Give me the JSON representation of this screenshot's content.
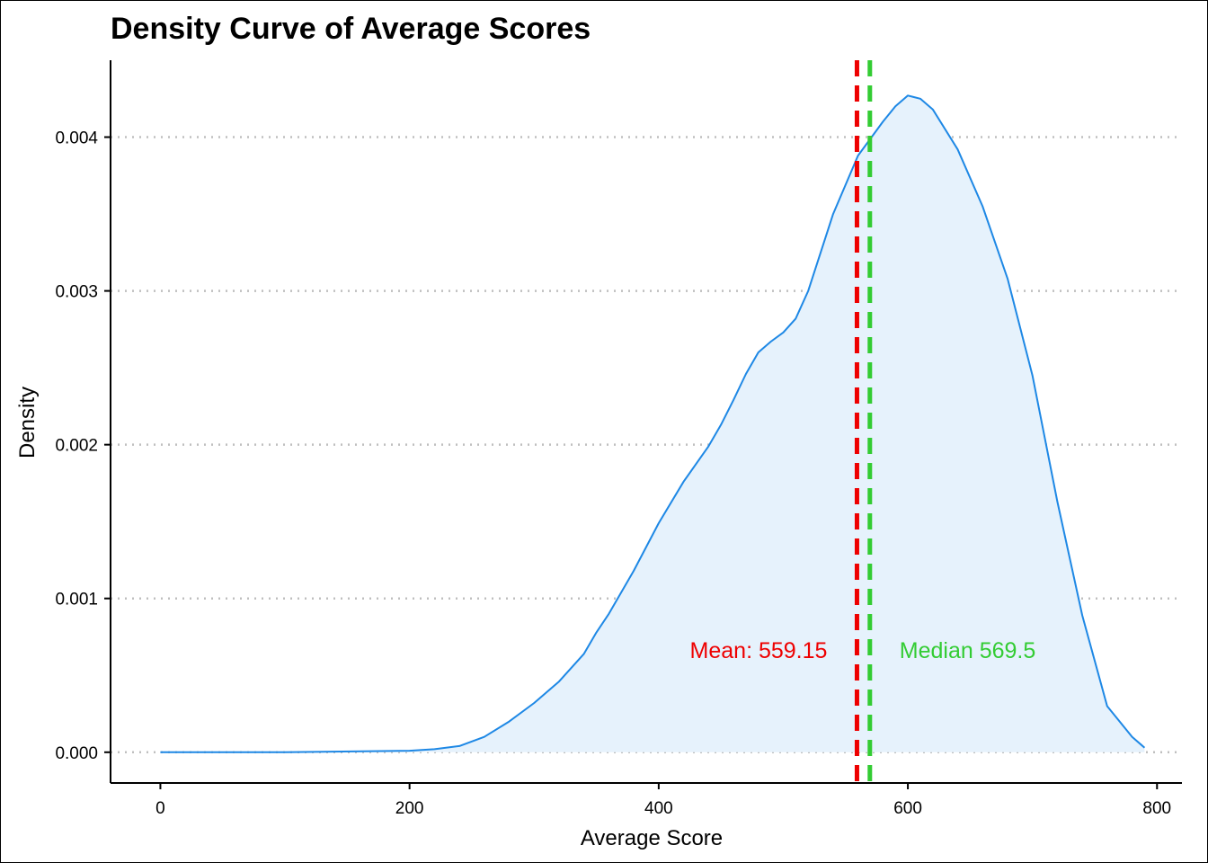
{
  "chart_data": {
    "type": "area",
    "title": "Density Curve of Average Scores",
    "xlabel": "Average Score",
    "ylabel": "Density",
    "xlim": [
      -40,
      820
    ],
    "ylim": [
      -0.0002,
      0.0045
    ],
    "x_ticks": [
      0,
      200,
      400,
      600,
      800
    ],
    "x_tick_labels": [
      "0",
      "200",
      "400",
      "600",
      "800"
    ],
    "y_ticks": [
      0,
      0.001,
      0.002,
      0.003,
      0.004
    ],
    "y_tick_labels": [
      "0.000",
      "0.001",
      "0.002",
      "0.003",
      "0.004"
    ],
    "grid": "horizontal dotted",
    "legend": "none",
    "series": [
      {
        "x": [
          0,
          100,
          200,
          220,
          240,
          260,
          280,
          300,
          320,
          340,
          350,
          360,
          380,
          400,
          420,
          440,
          450,
          460,
          470,
          480,
          490,
          500,
          510,
          520,
          540,
          560,
          580,
          590,
          600,
          610,
          620,
          640,
          660,
          680,
          700,
          720,
          740,
          760,
          780,
          790
        ],
        "y": [
          0,
          0,
          1e-05,
          2e-05,
          4e-05,
          0.0001,
          0.0002,
          0.00032,
          0.00046,
          0.00064,
          0.00078,
          0.0009,
          0.00118,
          0.00149,
          0.00176,
          0.00199,
          0.00213,
          0.00229,
          0.00246,
          0.0026,
          0.00267,
          0.00273,
          0.00282,
          0.003,
          0.0035,
          0.00388,
          0.0041,
          0.0042,
          0.00427,
          0.00425,
          0.00418,
          0.00392,
          0.00355,
          0.00308,
          0.00245,
          0.00163,
          0.00089,
          0.0003,
          0.0001,
          3e-05
        ]
      }
    ],
    "vlines": [
      {
        "x": 559.15,
        "label": "Mean: 559.15",
        "color": "#ee0000"
      },
      {
        "x": 569.5,
        "label": "Median 569.5",
        "color": "#33cc33"
      }
    ],
    "colors": {
      "line": "#1e88e5",
      "fill": "#e6f2fc",
      "mean": "#ee0000",
      "median": "#33cc33",
      "grid": "#bfbfbf"
    }
  }
}
